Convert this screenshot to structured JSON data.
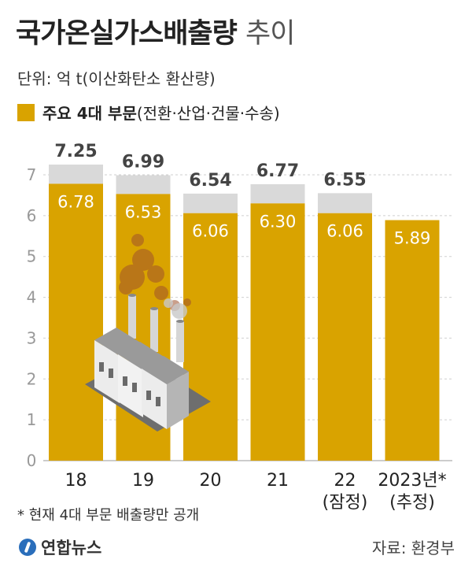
{
  "title_main": "국가온실가스배출량",
  "title_sub": "추이",
  "unit_label": "단위: 억 t(이산화탄소 환산량)",
  "legend": {
    "main": "주요 4대 부문",
    "detail": "(전환·산업·건물·수송)",
    "color": "#d9a300"
  },
  "footnote": "* 현재 4대 부문 배출량만 공개",
  "logo": "연합뉴스",
  "source": "자료: 환경부",
  "chart_data": {
    "type": "bar",
    "categories": [
      "18",
      "19",
      "20",
      "21",
      "22",
      "2023년*"
    ],
    "category_sublabels": [
      "",
      "",
      "",
      "",
      "(잠정)",
      "(추정)"
    ],
    "series": [
      {
        "name": "주요 4대 부문",
        "values": [
          6.78,
          6.53,
          6.06,
          6.3,
          6.06,
          5.89
        ],
        "color": "#d9a300"
      },
      {
        "values": [
          7.25,
          6.99,
          6.54,
          6.77,
          6.55,
          null
        ],
        "color": "#d9d9d9"
      }
    ],
    "total_labels": [
      "7.25",
      "6.99",
      "6.54",
      "6.77",
      "6.55",
      ""
    ],
    "sector_labels": [
      "6.78",
      "6.53",
      "6.06",
      "6.30",
      "6.06",
      "5.89"
    ],
    "y_ticks": [
      0,
      1,
      2,
      3,
      4,
      5,
      6,
      7
    ],
    "ylim": [
      0,
      7.5
    ]
  }
}
